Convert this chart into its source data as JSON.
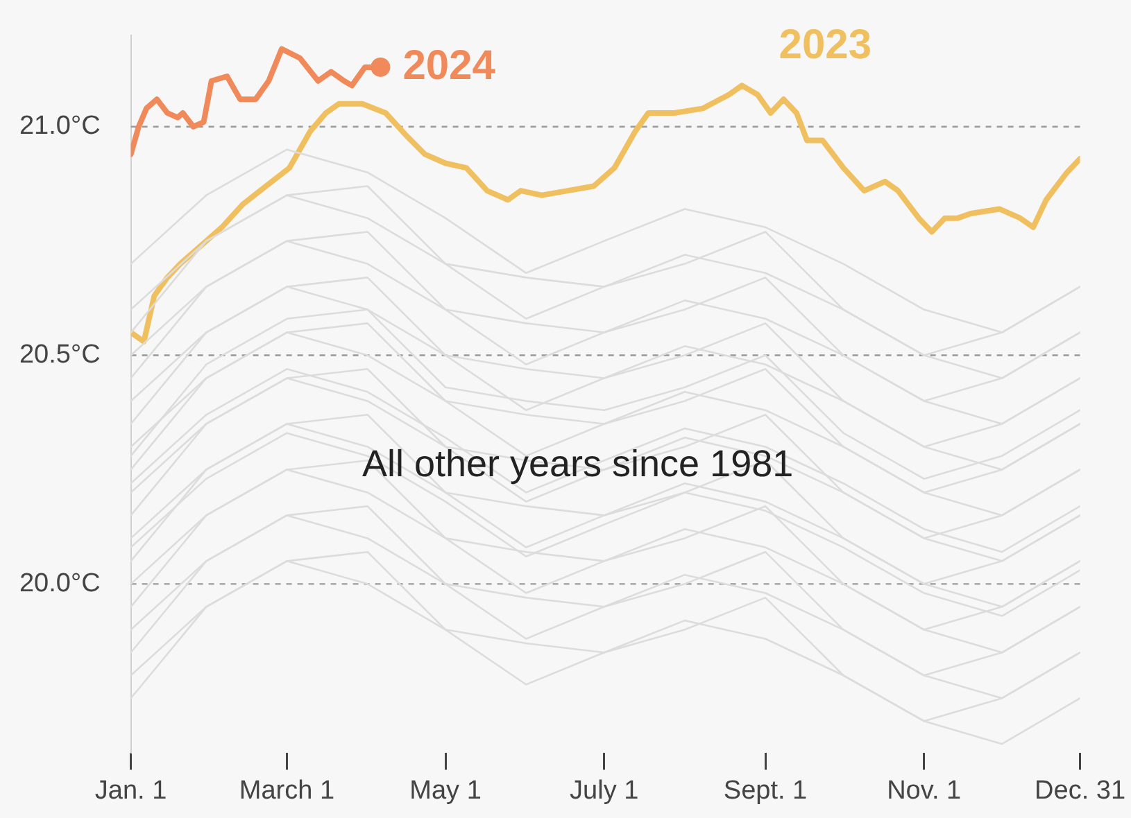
{
  "chart_data": {
    "type": "line",
    "annotations": [
      "All other years since 1981"
    ],
    "xlim": [
      "--01-01",
      "--12-31"
    ],
    "xticks": [
      {
        "value": "--01-01",
        "label": "Jan. 1"
      },
      {
        "value": "--03-01",
        "label": "March 1"
      },
      {
        "value": "--05-01",
        "label": "May 1"
      },
      {
        "value": "--07-01",
        "label": "July 1"
      },
      {
        "value": "--09-01",
        "label": "Sept. 1"
      },
      {
        "value": "--11-01",
        "label": "Nov. 1"
      },
      {
        "value": "--12-31",
        "label": "Dec. 31"
      }
    ],
    "yticks": [
      {
        "value": 20,
        "label": "20.0°C"
      },
      {
        "value": 20.5,
        "label": "20.5°C"
      },
      {
        "value": 21,
        "label": "21.0°C"
      }
    ],
    "ylim": [
      19.63,
      21.2
    ],
    "grid": "y",
    "legend": false,
    "line_style": "solid",
    "x": [
      "--01-01",
      "--01-30",
      "--03-01",
      "--04-01",
      "--05-01",
      "--06-01",
      "--07-01",
      "--08-01",
      "--09-01",
      "--10-01",
      "--11-01",
      "--12-01",
      "--12-31"
    ],
    "series": [
      {
        "color": "#dcdcdc",
        "values": [
          19.8,
          19.95,
          20.05,
          20.0,
          19.9,
          19.78,
          19.85,
          19.92,
          19.88,
          19.8,
          19.7,
          19.65,
          19.75
        ]
      },
      {
        "color": "#dcdcdc",
        "values": [
          19.75,
          19.95,
          20.05,
          20.07,
          19.9,
          19.87,
          19.85,
          19.9,
          19.97,
          19.8,
          19.7,
          19.75,
          19.85
        ]
      },
      {
        "color": "#dcdcdc",
        "values": [
          19.9,
          20.05,
          20.15,
          20.1,
          20.0,
          19.88,
          19.95,
          20.02,
          19.98,
          19.9,
          19.8,
          19.75,
          19.85
        ]
      },
      {
        "color": "#dcdcdc",
        "values": [
          19.85,
          20.05,
          20.15,
          20.17,
          20.0,
          19.97,
          19.95,
          20.0,
          20.07,
          19.9,
          19.8,
          19.85,
          19.95
        ]
      },
      {
        "color": "#dcdcdc",
        "values": [
          20.0,
          20.15,
          20.25,
          20.2,
          20.1,
          19.98,
          20.05,
          20.12,
          20.08,
          20.0,
          19.9,
          19.85,
          19.95
        ]
      },
      {
        "color": "#dcdcdc",
        "values": [
          19.95,
          20.15,
          20.25,
          20.27,
          20.1,
          20.07,
          20.05,
          20.1,
          20.17,
          20.0,
          19.9,
          19.95,
          20.05
        ]
      },
      {
        "color": "#dcdcdc",
        "values": [
          20.08,
          20.23,
          20.33,
          20.28,
          20.18,
          20.06,
          20.13,
          20.2,
          20.16,
          20.08,
          19.98,
          19.93,
          20.03
        ]
      },
      {
        "color": "#dcdcdc",
        "values": [
          20.1,
          20.25,
          20.35,
          20.3,
          20.2,
          20.08,
          20.15,
          20.22,
          20.18,
          20.1,
          20.0,
          19.95,
          20.05
        ]
      },
      {
        "color": "#dcdcdc",
        "values": [
          20.05,
          20.25,
          20.35,
          20.37,
          20.2,
          20.17,
          20.15,
          20.2,
          20.27,
          20.1,
          20.0,
          20.05,
          20.15
        ]
      },
      {
        "color": "#dcdcdc",
        "values": [
          20.2,
          20.35,
          20.45,
          20.4,
          20.3,
          20.18,
          20.25,
          20.32,
          20.28,
          20.2,
          20.1,
          20.05,
          20.15
        ]
      },
      {
        "color": "#dcdcdc",
        "values": [
          20.22,
          20.37,
          20.47,
          20.42,
          20.32,
          20.2,
          20.27,
          20.34,
          20.3,
          20.22,
          20.12,
          20.07,
          20.17
        ]
      },
      {
        "color": "#dcdcdc",
        "values": [
          20.15,
          20.35,
          20.45,
          20.47,
          20.3,
          20.27,
          20.25,
          20.3,
          20.37,
          20.2,
          20.1,
          20.15,
          20.25
        ]
      },
      {
        "color": "#dcdcdc",
        "values": [
          20.3,
          20.45,
          20.55,
          20.5,
          20.4,
          20.28,
          20.35,
          20.42,
          20.38,
          20.3,
          20.2,
          20.15,
          20.25
        ]
      },
      {
        "color": "#dcdcdc",
        "values": [
          20.25,
          20.45,
          20.55,
          20.57,
          20.4,
          20.37,
          20.35,
          20.4,
          20.47,
          20.3,
          20.2,
          20.25,
          20.35
        ]
      },
      {
        "color": "#dcdcdc",
        "values": [
          20.28,
          20.48,
          20.58,
          20.6,
          20.43,
          20.4,
          20.38,
          20.43,
          20.5,
          20.33,
          20.23,
          20.28,
          20.38
        ]
      },
      {
        "color": "#dcdcdc",
        "values": [
          20.4,
          20.55,
          20.65,
          20.6,
          20.5,
          20.38,
          20.45,
          20.52,
          20.48,
          20.4,
          20.3,
          20.25,
          20.35
        ]
      },
      {
        "color": "#dcdcdc",
        "values": [
          20.35,
          20.55,
          20.65,
          20.67,
          20.5,
          20.47,
          20.45,
          20.5,
          20.57,
          20.4,
          20.3,
          20.35,
          20.45
        ]
      },
      {
        "color": "#dcdcdc",
        "values": [
          20.5,
          20.65,
          20.75,
          20.7,
          20.6,
          20.48,
          20.55,
          20.62,
          20.58,
          20.5,
          20.4,
          20.35,
          20.45
        ]
      },
      {
        "color": "#dcdcdc",
        "values": [
          20.45,
          20.65,
          20.75,
          20.77,
          20.6,
          20.57,
          20.55,
          20.6,
          20.67,
          20.5,
          20.4,
          20.45,
          20.55
        ]
      },
      {
        "color": "#dcdcdc",
        "values": [
          20.6,
          20.75,
          20.85,
          20.8,
          20.7,
          20.58,
          20.65,
          20.72,
          20.68,
          20.6,
          20.5,
          20.45,
          20.55
        ]
      },
      {
        "color": "#dcdcdc",
        "values": [
          20.55,
          20.75,
          20.85,
          20.87,
          20.7,
          20.67,
          20.65,
          20.7,
          20.77,
          20.6,
          20.5,
          20.55,
          20.65
        ]
      },
      {
        "color": "#dcdcdc",
        "values": [
          20.7,
          20.85,
          20.95,
          20.9,
          20.8,
          20.68,
          20.75,
          20.82,
          20.78,
          20.7,
          20.6,
          20.55,
          20.65
        ]
      },
      {
        "name": "2023",
        "color": "#f0c060",
        "x": [
          "--01-01",
          "--01-06",
          "--01-10",
          "--01-15",
          "--01-20",
          "--01-28",
          "--02-05",
          "--02-13",
          "--02-22",
          "--03-02",
          "--03-10",
          "--03-16",
          "--03-21",
          "--03-30",
          "--04-08",
          "--04-16",
          "--04-23",
          "--05-01",
          "--05-09",
          "--05-17",
          "--05-25",
          "--05-30",
          "--06-07",
          "--06-17",
          "--06-27",
          "--07-05",
          "--07-13",
          "--07-18",
          "--07-28",
          "--08-08",
          "--08-18",
          "--08-23",
          "--08-29",
          "--09-03",
          "--09-08",
          "--09-13",
          "--09-17",
          "--09-23",
          "--10-01",
          "--10-09",
          "--10-17",
          "--10-22",
          "--10-30",
          "--11-04",
          "--11-09",
          "--11-14",
          "--11-19",
          "--11-30",
          "--12-08",
          "--12-13",
          "--12-18",
          "--12-26",
          "--12-31"
        ],
        "values": [
          20.55,
          20.53,
          20.63,
          20.67,
          20.7,
          20.74,
          20.78,
          20.83,
          20.87,
          20.91,
          20.99,
          21.03,
          21.05,
          21.05,
          21.03,
          20.98,
          20.94,
          20.92,
          20.91,
          20.86,
          20.84,
          20.86,
          20.85,
          20.86,
          20.87,
          20.91,
          20.99,
          21.03,
          21.03,
          21.04,
          21.07,
          21.09,
          21.07,
          21.03,
          21.06,
          21.03,
          20.97,
          20.97,
          20.91,
          20.86,
          20.88,
          20.86,
          20.8,
          20.77,
          20.8,
          20.8,
          20.81,
          20.82,
          20.8,
          20.78,
          20.84,
          20.9,
          20.93
        ]
      },
      {
        "name": "2024",
        "color": "#f08a5a",
        "x": [
          "--01-01",
          "--01-04",
          "--01-07",
          "--01-11",
          "--01-15",
          "--01-19",
          "--01-21",
          "--01-25",
          "--01-29",
          "--02-01",
          "--02-07",
          "--02-12",
          "--02-18",
          "--02-23",
          "--02-28",
          "--03-06",
          "--03-13",
          "--03-18",
          "--03-23",
          "--03-26",
          "--03-31",
          "--04-06"
        ],
        "values": [
          20.94,
          21.0,
          21.04,
          21.06,
          21.03,
          21.02,
          21.03,
          21.0,
          21.01,
          21.1,
          21.11,
          21.06,
          21.06,
          21.1,
          21.17,
          21.15,
          21.1,
          21.12,
          21.1,
          21.09,
          21.13,
          21.13
        ]
      }
    ]
  }
}
